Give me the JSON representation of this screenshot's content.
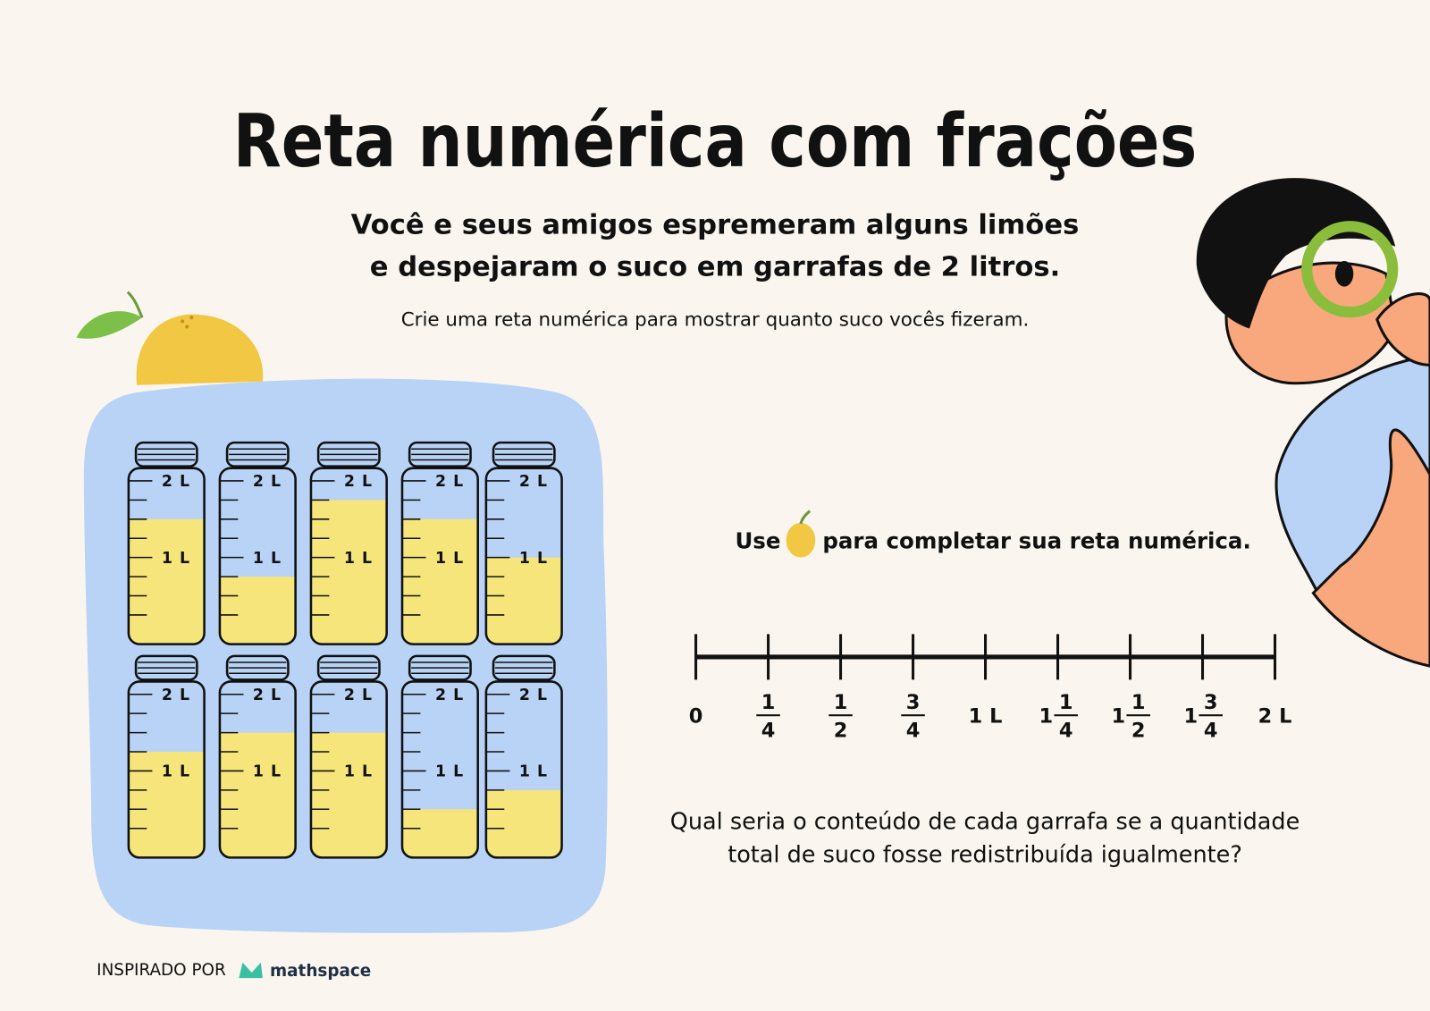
{
  "header": {
    "title": "Reta numérica com frações",
    "subtitle_lines": [
      "Você e seus amigos espremeram alguns limões",
      "e despejaram o suco em garrafas de 2 litros."
    ],
    "instruction": "Crie uma reta numérica para mostrar quanto suco vocês fizeram."
  },
  "jars": [
    {
      "fill_liters": 1.5,
      "labels": [
        "2 L",
        "1 L"
      ]
    },
    {
      "fill_liters": 0.75,
      "labels": [
        "2 L",
        "1 L"
      ]
    },
    {
      "fill_liters": 1.75,
      "labels": [
        "2 L",
        "1 L"
      ]
    },
    {
      "fill_liters": 1.5,
      "labels": [
        "2 L",
        "1 L"
      ]
    },
    {
      "fill_liters": 1,
      "labels": [
        "2 L",
        "1 L"
      ]
    },
    {
      "fill_liters": 1.25,
      "labels": [
        "2 L",
        "1 L"
      ]
    },
    {
      "fill_liters": 1.5,
      "labels": [
        "2 L",
        "1 L"
      ]
    },
    {
      "fill_liters": 1.5,
      "labels": [
        "2 L",
        "1 L"
      ]
    },
    {
      "fill_liters": 0.5,
      "labels": [
        "2 L",
        "1 L"
      ]
    },
    {
      "fill_liters": 0.75,
      "labels": [
        "2 L",
        "1 L"
      ]
    }
  ],
  "number_line": {
    "prompt_before": "Use",
    "prompt_after": "para completar sua reta numérica.",
    "ticks": [
      {
        "label": "0"
      },
      {
        "numerator": "1",
        "denominator": "4"
      },
      {
        "numerator": "1",
        "denominator": "2"
      },
      {
        "numerator": "3",
        "denominator": "4"
      },
      {
        "label": "1 L"
      },
      {
        "whole": "1",
        "numerator": "1",
        "denominator": "4"
      },
      {
        "whole": "1",
        "numerator": "1",
        "denominator": "2"
      },
      {
        "whole": "1",
        "numerator": "3",
        "denominator": "4"
      },
      {
        "label": "2 L"
      }
    ]
  },
  "question_lines": [
    "Qual seria o conteúdo de cada garrafa se a quantidade",
    "total de suco fosse redistribuída igualmente?"
  ],
  "footer": {
    "credit": "INSPIRADO POR",
    "brand": "mathspace"
  }
}
